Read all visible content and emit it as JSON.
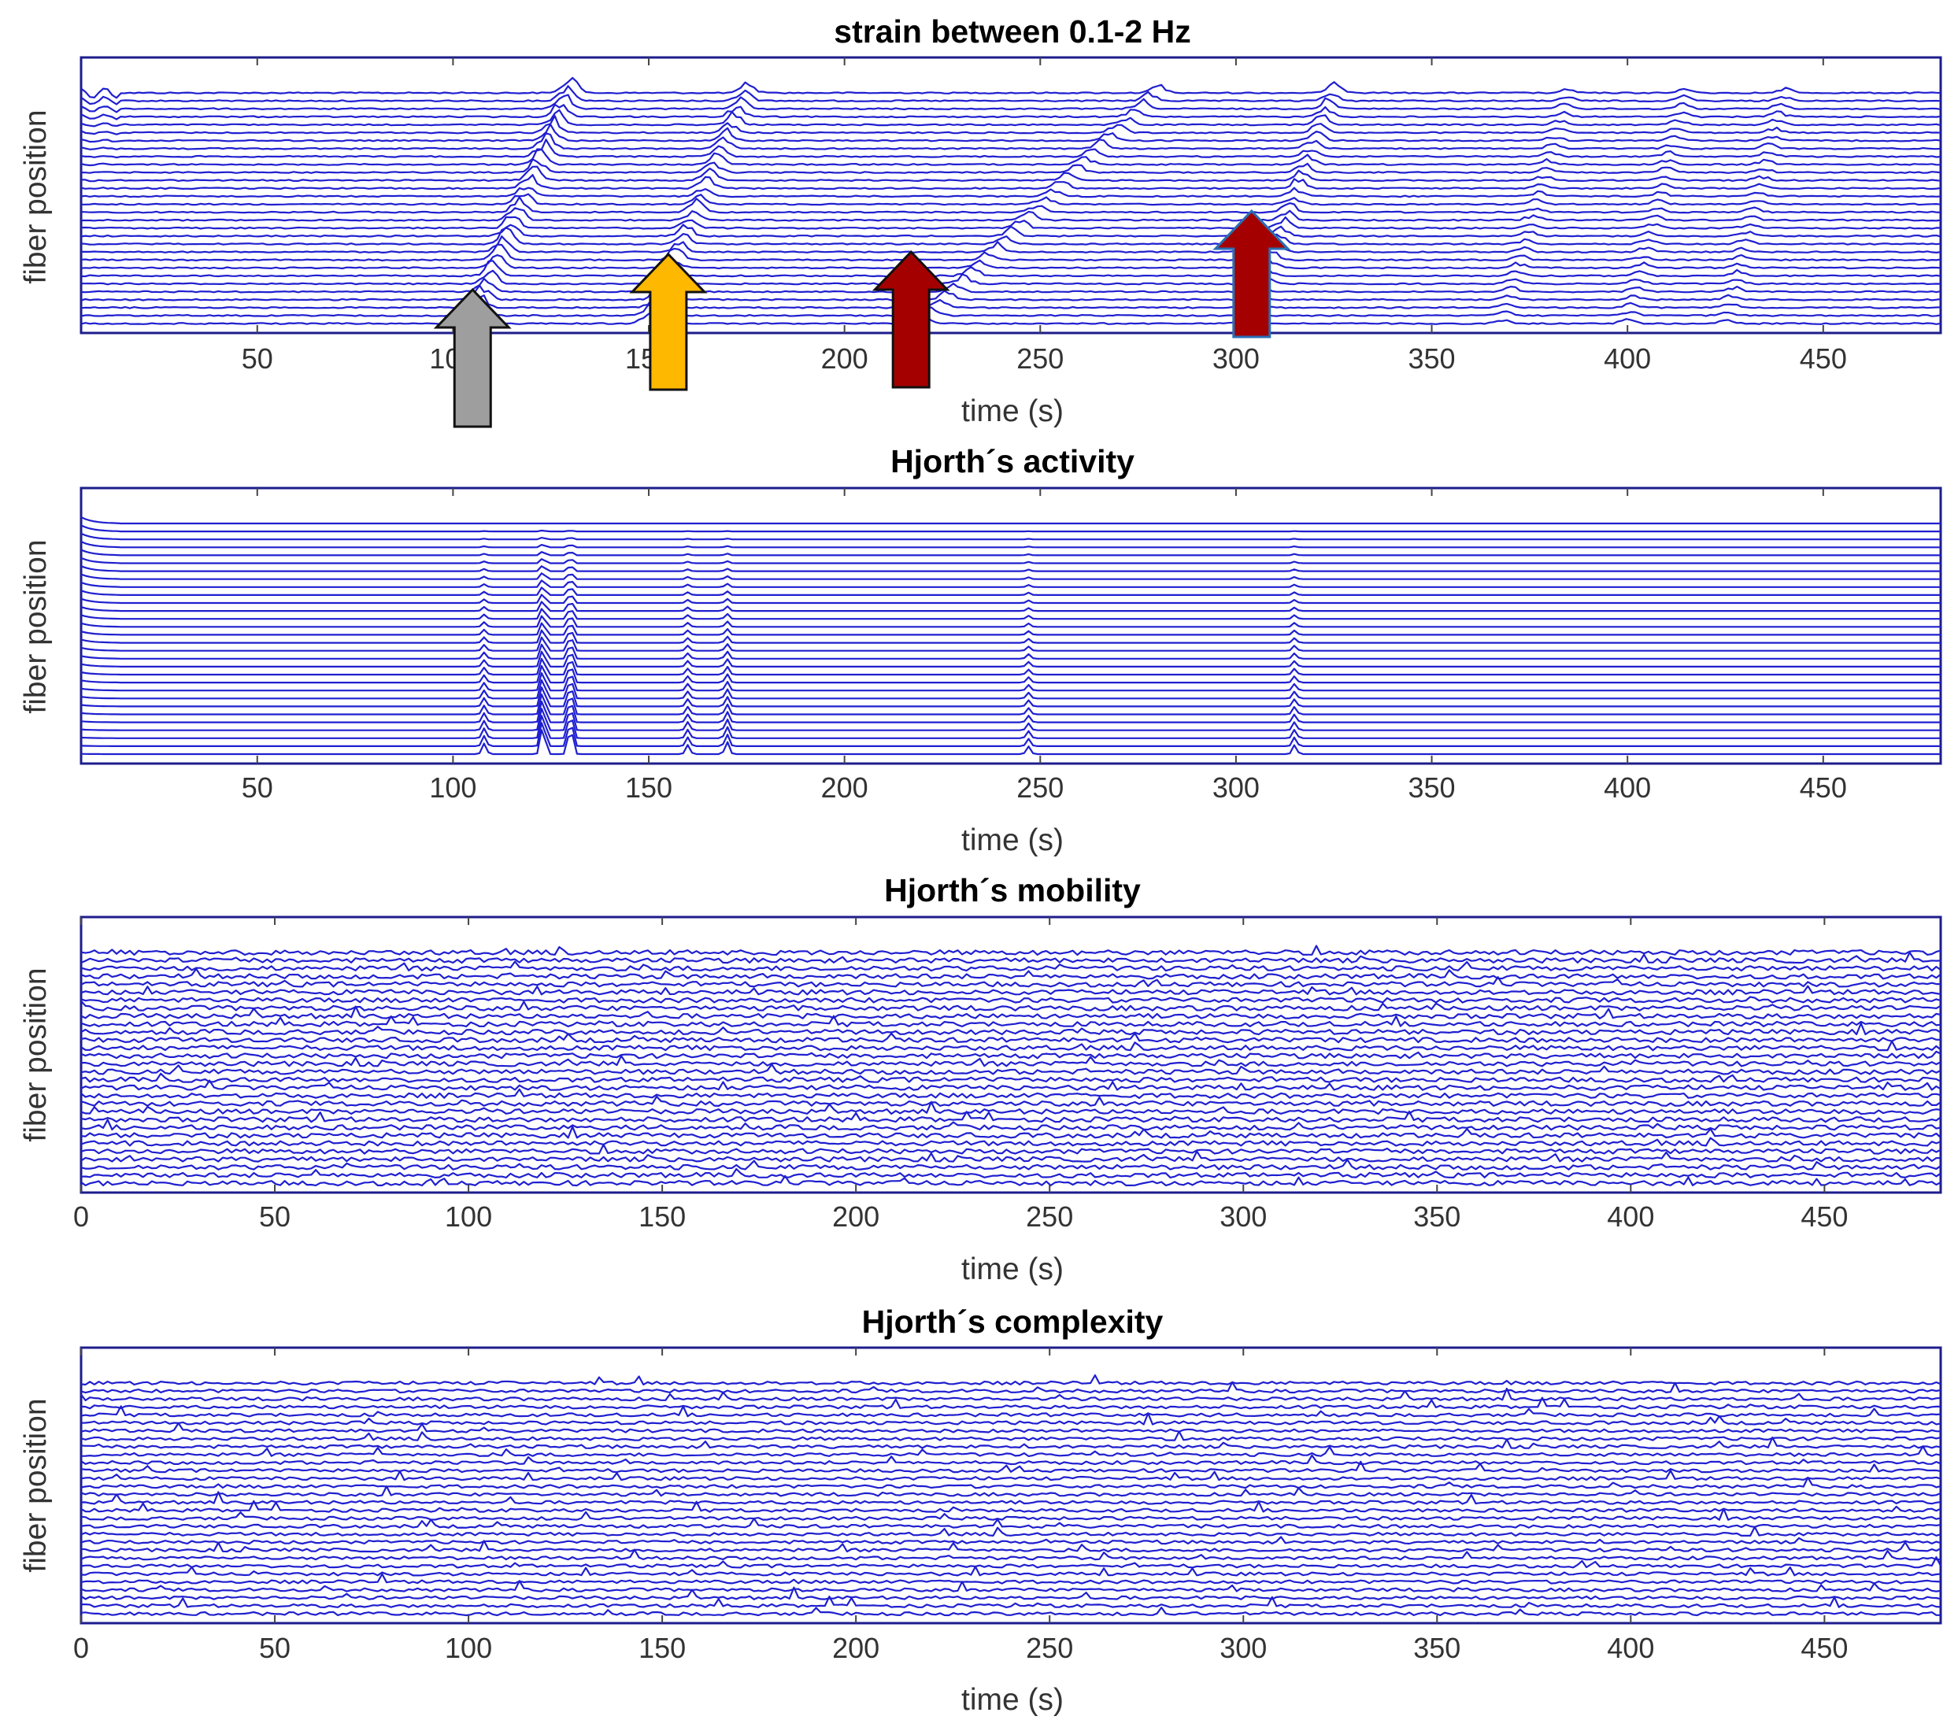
{
  "figure_title": "",
  "chart_data": [
    {
      "type": "line",
      "title": "strain between 0.1-2 Hz",
      "xlabel": "time (s)",
      "ylabel": "fiber position",
      "xlim": [
        5,
        480
      ],
      "xticks": [
        50,
        100,
        150,
        200,
        250,
        300,
        350,
        400,
        450
      ],
      "tick_labels": [
        "50",
        "100",
        "150",
        "200",
        "250",
        "300",
        "350",
        "400",
        "450"
      ],
      "n_traces": 30,
      "line_color": "#1f1fd0",
      "grid": false,
      "event_lines": [
        {
          "t0": 105,
          "t1": 130,
          "amp": 1.6
        },
        {
          "t0": 150,
          "t1": 175,
          "amp": 1.2
        },
        {
          "t0": 220,
          "t1": 280,
          "amp": 0.9
        },
        {
          "t0": 303,
          "t1": 325,
          "amp": 1.0
        },
        {
          "t0": 368,
          "t1": 385,
          "amp": 0.5
        },
        {
          "t0": 400,
          "t1": 415,
          "amp": 0.5
        },
        {
          "t0": 425,
          "t1": 440,
          "amp": 0.5
        }
      ],
      "arrows": [
        {
          "t": 105,
          "color": "#9e9e9e"
        },
        {
          "t": 155,
          "color": "#ffb800"
        },
        {
          "t": 217,
          "color": "#a50000"
        },
        {
          "t": 304,
          "color": "#a50000"
        }
      ]
    },
    {
      "type": "line",
      "title": "Hjorth´s activity",
      "xlabel": "time (s)",
      "ylabel": "fiber position",
      "xlim": [
        5,
        480
      ],
      "xticks": [
        50,
        100,
        150,
        200,
        250,
        300,
        350,
        400,
        450
      ],
      "tick_labels": [
        "50",
        "100",
        "150",
        "200",
        "250",
        "300",
        "350",
        "400",
        "450"
      ],
      "n_traces": 30,
      "line_color": "#1f1fd0",
      "grid": false,
      "peaks": [
        {
          "t": 123,
          "amp": 1.0
        },
        {
          "t": 130,
          "amp": 1.0
        },
        {
          "t": 108,
          "amp": 0.35
        },
        {
          "t": 160,
          "amp": 0.3
        },
        {
          "t": 170,
          "amp": 0.4
        },
        {
          "t": 247,
          "amp": 0.25
        },
        {
          "t": 315,
          "amp": 0.3
        }
      ]
    },
    {
      "type": "line",
      "title": "Hjorth´s mobility",
      "xlabel": "time (s)",
      "ylabel": "fiber position",
      "xlim": [
        0,
        480
      ],
      "xticks": [
        0,
        50,
        100,
        150,
        200,
        250,
        300,
        350,
        400,
        450
      ],
      "tick_labels": [
        "0",
        "50",
        "100",
        "150",
        "200",
        "250",
        "300",
        "350",
        "400",
        "450"
      ],
      "n_traces": 30,
      "line_color": "#1f1fd0",
      "grid": false
    },
    {
      "type": "line",
      "title": "Hjorth´s complexity",
      "xlabel": "time (s)",
      "ylabel": "fiber position",
      "xlim": [
        0,
        480
      ],
      "xticks": [
        0,
        50,
        100,
        150,
        200,
        250,
        300,
        350,
        400,
        450
      ],
      "tick_labels": [
        "0",
        "50",
        "100",
        "150",
        "200",
        "250",
        "300",
        "350",
        "400",
        "450"
      ],
      "n_traces": 30,
      "line_color": "#1f1fd0",
      "grid": false
    }
  ]
}
